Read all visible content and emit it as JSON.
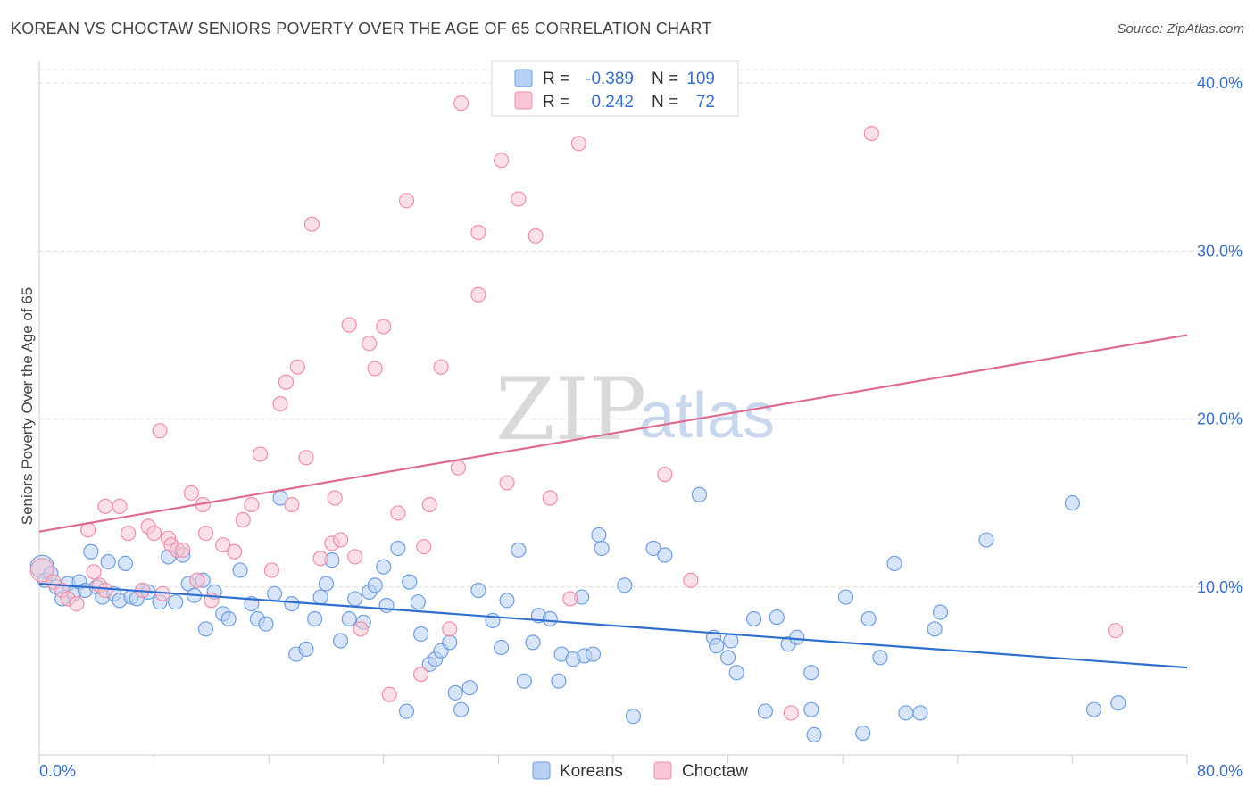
{
  "title": "KOREAN VS CHOCTAW SENIORS POVERTY OVER THE AGE OF 65 CORRELATION CHART",
  "source": "Source: ZipAtlas.com",
  "watermark": {
    "zip": "ZIP",
    "atlas": "atlas"
  },
  "colors": {
    "korean": "#6f9ee0",
    "korean_fill": "#b8d0f3",
    "choctaw": "#ee8fab",
    "choctaw_fill": "#f8c6d4",
    "korean_line": "#2f6fd0",
    "choctaw_line": "#e0698f"
  },
  "legend": {
    "r_label": "R =",
    "n_label": "N =",
    "rows": [
      {
        "r": "-0.389",
        "n": "109"
      },
      {
        "r": "0.242",
        "n": "72"
      }
    ]
  },
  "bottom_legend": [
    "Koreans",
    "Choctaw"
  ],
  "chart_data": {
    "type": "scatter",
    "title": "KOREAN VS CHOCTAW SENIORS POVERTY OVER THE AGE OF 65 CORRELATION CHART",
    "xlabel": "",
    "ylabel": "Seniors Poverty Over the Age of 65",
    "xlim": [
      0,
      80
    ],
    "ylim": [
      0,
      40.8
    ],
    "x_tick_labels": [
      "0.0%",
      "80.0%"
    ],
    "y_ticks": [
      10,
      20,
      30,
      40
    ],
    "y_tick_labels": [
      "10.0%",
      "20.0%",
      "30.0%",
      "40.0%"
    ],
    "series": [
      {
        "name": "Koreans",
        "r": -0.389,
        "n": 109,
        "trend": {
          "x": [
            0,
            80
          ],
          "y": [
            10.2,
            5.2
          ]
        },
        "points": [
          [
            0.2,
            11.2
          ],
          [
            0.4,
            10.4
          ],
          [
            0.8,
            10.8
          ],
          [
            1.2,
            10.0
          ],
          [
            1.6,
            9.3
          ],
          [
            2.0,
            10.2
          ],
          [
            2.4,
            9.6
          ],
          [
            2.8,
            10.3
          ],
          [
            3.2,
            9.8
          ],
          [
            3.6,
            12.1
          ],
          [
            4.0,
            10.0
          ],
          [
            4.4,
            9.4
          ],
          [
            4.8,
            11.5
          ],
          [
            5.2,
            9.6
          ],
          [
            5.6,
            9.2
          ],
          [
            6.0,
            11.4
          ],
          [
            6.4,
            9.4
          ],
          [
            6.8,
            9.3
          ],
          [
            7.2,
            9.8
          ],
          [
            7.6,
            9.7
          ],
          [
            8.4,
            9.1
          ],
          [
            9.0,
            11.8
          ],
          [
            9.5,
            9.1
          ],
          [
            10.0,
            11.9
          ],
          [
            10.4,
            10.2
          ],
          [
            10.8,
            9.5
          ],
          [
            11.4,
            10.4
          ],
          [
            11.6,
            7.5
          ],
          [
            12.2,
            9.7
          ],
          [
            12.8,
            8.4
          ],
          [
            13.2,
            8.1
          ],
          [
            14.0,
            11.0
          ],
          [
            14.8,
            9.0
          ],
          [
            15.2,
            8.1
          ],
          [
            15.8,
            7.8
          ],
          [
            16.4,
            9.6
          ],
          [
            16.8,
            15.3
          ],
          [
            17.6,
            9.0
          ],
          [
            17.9,
            6.0
          ],
          [
            18.6,
            6.3
          ],
          [
            19.2,
            8.1
          ],
          [
            19.6,
            9.4
          ],
          [
            20.0,
            10.2
          ],
          [
            20.4,
            11.6
          ],
          [
            21.0,
            6.8
          ],
          [
            21.6,
            8.1
          ],
          [
            22.0,
            9.3
          ],
          [
            22.6,
            7.9
          ],
          [
            23.0,
            9.7
          ],
          [
            23.4,
            10.1
          ],
          [
            24.0,
            11.2
          ],
          [
            24.2,
            8.9
          ],
          [
            25.0,
            12.3
          ],
          [
            25.6,
            2.6
          ],
          [
            25.8,
            10.3
          ],
          [
            26.4,
            9.1
          ],
          [
            26.6,
            7.2
          ],
          [
            27.2,
            5.4
          ],
          [
            27.6,
            5.7
          ],
          [
            28.0,
            6.2
          ],
          [
            28.6,
            6.7
          ],
          [
            29.0,
            3.7
          ],
          [
            29.4,
            2.7
          ],
          [
            30.0,
            4.0
          ],
          [
            30.6,
            9.8
          ],
          [
            31.6,
            8.0
          ],
          [
            32.2,
            6.4
          ],
          [
            32.6,
            9.2
          ],
          [
            33.4,
            12.2
          ],
          [
            33.8,
            4.4
          ],
          [
            34.4,
            6.7
          ],
          [
            34.8,
            8.3
          ],
          [
            35.6,
            8.1
          ],
          [
            36.2,
            4.4
          ],
          [
            36.4,
            6.0
          ],
          [
            37.2,
            5.7
          ],
          [
            37.8,
            9.4
          ],
          [
            38.0,
            5.9
          ],
          [
            38.6,
            6.0
          ],
          [
            39.0,
            13.1
          ],
          [
            39.2,
            12.3
          ],
          [
            40.8,
            10.1
          ],
          [
            41.4,
            2.3
          ],
          [
            42.8,
            12.3
          ],
          [
            43.6,
            11.9
          ],
          [
            46.0,
            15.5
          ],
          [
            47.0,
            7.0
          ],
          [
            47.2,
            6.5
          ],
          [
            48.0,
            5.8
          ],
          [
            48.2,
            6.8
          ],
          [
            48.6,
            4.9
          ],
          [
            49.8,
            8.1
          ],
          [
            50.6,
            2.6
          ],
          [
            51.4,
            8.2
          ],
          [
            52.2,
            6.6
          ],
          [
            52.8,
            7.0
          ],
          [
            53.8,
            4.9
          ],
          [
            53.8,
            2.7
          ],
          [
            54.0,
            1.2
          ],
          [
            56.2,
            9.4
          ],
          [
            57.4,
            1.3
          ],
          [
            57.8,
            8.1
          ],
          [
            58.6,
            5.8
          ],
          [
            59.6,
            11.4
          ],
          [
            60.4,
            2.5
          ],
          [
            61.4,
            2.5
          ],
          [
            62.4,
            7.5
          ],
          [
            62.8,
            8.5
          ],
          [
            66.0,
            12.8
          ],
          [
            72.0,
            15.0
          ],
          [
            73.5,
            2.7
          ],
          [
            75.2,
            3.1
          ]
        ]
      },
      {
        "name": "Choctaw",
        "r": 0.242,
        "n": 72,
        "trend": {
          "x": [
            0,
            80
          ],
          "y": [
            13.3,
            25.0
          ]
        },
        "points": [
          [
            0.2,
            11.0
          ],
          [
            1.0,
            10.3
          ],
          [
            1.6,
            9.8
          ],
          [
            2.0,
            9.3
          ],
          [
            2.6,
            9.0
          ],
          [
            3.4,
            13.4
          ],
          [
            3.8,
            10.9
          ],
          [
            4.2,
            10.1
          ],
          [
            4.6,
            9.8
          ],
          [
            4.6,
            14.8
          ],
          [
            5.6,
            14.8
          ],
          [
            6.2,
            13.2
          ],
          [
            7.2,
            9.8
          ],
          [
            7.6,
            13.6
          ],
          [
            8.0,
            13.2
          ],
          [
            8.4,
            19.3
          ],
          [
            8.6,
            9.6
          ],
          [
            9.0,
            12.9
          ],
          [
            9.2,
            12.5
          ],
          [
            9.6,
            12.2
          ],
          [
            10.0,
            12.2
          ],
          [
            10.6,
            15.6
          ],
          [
            11.0,
            10.4
          ],
          [
            11.4,
            14.9
          ],
          [
            11.6,
            13.2
          ],
          [
            12.0,
            9.2
          ],
          [
            12.8,
            12.5
          ],
          [
            13.6,
            12.1
          ],
          [
            14.2,
            14.0
          ],
          [
            14.8,
            14.9
          ],
          [
            15.4,
            17.9
          ],
          [
            16.2,
            11.0
          ],
          [
            16.8,
            20.9
          ],
          [
            17.2,
            22.2
          ],
          [
            17.6,
            14.9
          ],
          [
            18.0,
            23.1
          ],
          [
            18.6,
            17.7
          ],
          [
            19.0,
            31.6
          ],
          [
            19.6,
            11.7
          ],
          [
            20.4,
            12.6
          ],
          [
            20.6,
            15.3
          ],
          [
            21.0,
            12.8
          ],
          [
            21.6,
            25.6
          ],
          [
            22.0,
            11.8
          ],
          [
            22.4,
            7.5
          ],
          [
            23.0,
            24.5
          ],
          [
            23.4,
            23.0
          ],
          [
            24.0,
            25.5
          ],
          [
            24.4,
            3.6
          ],
          [
            25.0,
            14.4
          ],
          [
            25.6,
            33.0
          ],
          [
            26.6,
            4.8
          ],
          [
            26.8,
            12.4
          ],
          [
            27.2,
            14.9
          ],
          [
            28.0,
            23.1
          ],
          [
            28.6,
            7.5
          ],
          [
            29.2,
            17.1
          ],
          [
            29.4,
            38.8
          ],
          [
            30.6,
            27.4
          ],
          [
            30.6,
            31.1
          ],
          [
            32.2,
            35.4
          ],
          [
            32.6,
            16.2
          ],
          [
            33.4,
            33.1
          ],
          [
            34.6,
            30.9
          ],
          [
            35.6,
            15.3
          ],
          [
            37.0,
            9.3
          ],
          [
            37.6,
            36.4
          ],
          [
            43.6,
            16.7
          ],
          [
            45.4,
            10.4
          ],
          [
            52.4,
            2.5
          ],
          [
            58.0,
            37.0
          ],
          [
            75.0,
            7.4
          ]
        ]
      }
    ]
  }
}
